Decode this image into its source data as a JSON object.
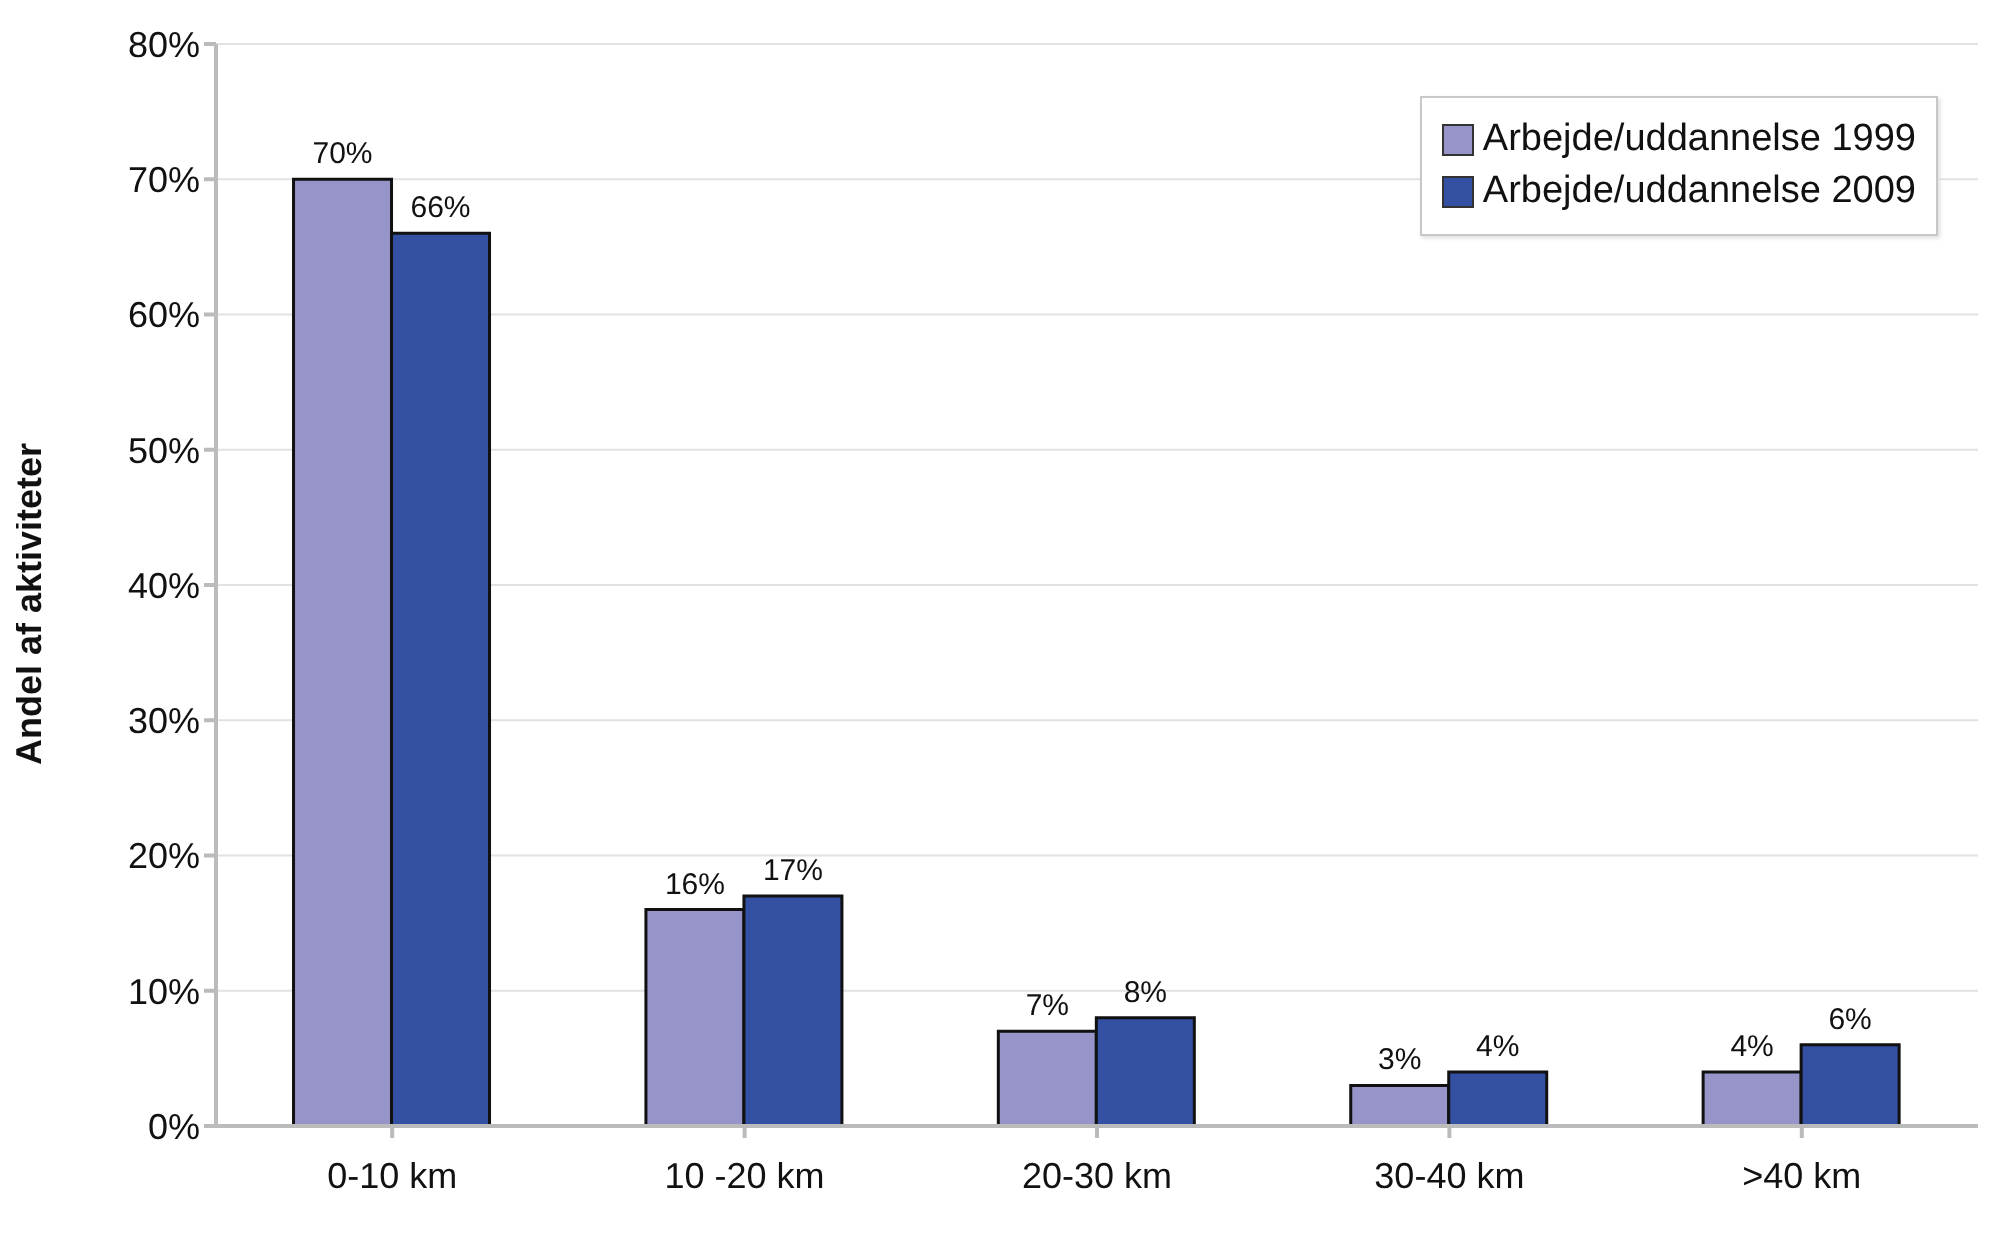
{
  "chart_data": {
    "type": "bar",
    "ylabel": "Andel af aktiviteter",
    "categories": [
      "0-10 km",
      "10 -20 km",
      "20-30 km",
      "30-40 km",
      ">40 km"
    ],
    "series": [
      {
        "name": "Arbejde/uddannelse 1999",
        "color": "#9694c8",
        "values": [
          70,
          16,
          7,
          3,
          4
        ],
        "value_labels": [
          "70%",
          "16%",
          "7%",
          "3%",
          "4%"
        ]
      },
      {
        "name": "Arbejde/uddannelse 2009",
        "color": "#3350a3",
        "values": [
          66,
          17,
          8,
          4,
          6
        ],
        "value_labels": [
          "66%",
          "17%",
          "8%",
          "4%",
          "6%"
        ]
      }
    ],
    "ylim": [
      0,
      80
    ],
    "yticks": [
      {
        "value": 0,
        "label": "0%"
      },
      {
        "value": 10,
        "label": "10%"
      },
      {
        "value": 20,
        "label": "20%"
      },
      {
        "value": 30,
        "label": "30%"
      },
      {
        "value": 40,
        "label": "40%"
      },
      {
        "value": 50,
        "label": "50%"
      },
      {
        "value": 60,
        "label": "60%"
      },
      {
        "value": 70,
        "label": "70%"
      },
      {
        "value": 80,
        "label": "80%"
      }
    ],
    "grid": "y",
    "legend": "top right"
  }
}
